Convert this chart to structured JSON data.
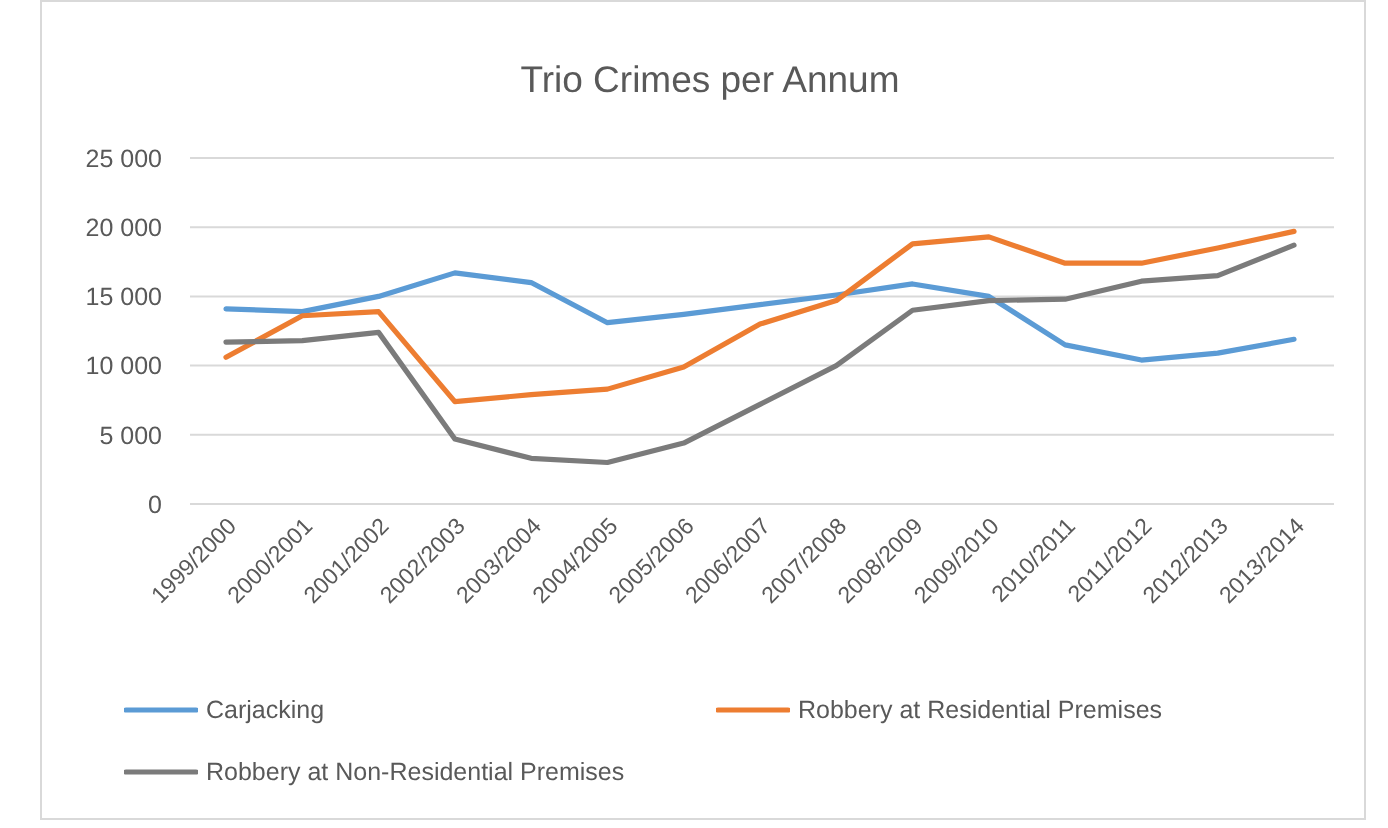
{
  "chart_data": {
    "type": "line",
    "title": "Trio Crimes per Annum",
    "categories": [
      "1999/2000",
      "2000/2001",
      "2001/2002",
      "2002/2003",
      "2003/2004",
      "2004/2005",
      "2005/2006",
      "2006/2007",
      "2007/2008",
      "2008/2009",
      "2009/2010",
      "2010/2011",
      "2011/2012",
      "2012/2013",
      "2013/2014"
    ],
    "series": [
      {
        "name": "Carjacking",
        "color": "#5b9bd5",
        "values": [
          14100,
          13900,
          15000,
          16700,
          16000,
          13100,
          13700,
          14400,
          15100,
          15900,
          15000,
          11500,
          10400,
          10900,
          11900
        ]
      },
      {
        "name": "Robbery at Residential Premises",
        "color": "#ed7d31",
        "values": [
          10600,
          13600,
          13900,
          7400,
          7900,
          8300,
          9900,
          13000,
          14700,
          18800,
          19300,
          17400,
          17400,
          18500,
          19700
        ]
      },
      {
        "name": "Robbery at Non-Residential Premises",
        "color": "#7b7b7b",
        "values": [
          11700,
          11800,
          12400,
          4700,
          3300,
          3000,
          4400,
          7200,
          10000,
          14000,
          14700,
          14800,
          16100,
          16500,
          18700
        ]
      }
    ],
    "ylim": [
      0,
      25000
    ],
    "yticks": [
      0,
      {
        "value": 5000,
        "label": "5 000"
      },
      {
        "value": 10000,
        "label": "10 000"
      },
      {
        "value": 15000,
        "label": "15 000"
      },
      {
        "value": 20000,
        "label": "20 000"
      },
      {
        "value": 25000,
        "label": "25 000"
      }
    ],
    "grid": "y",
    "legend": "bottom",
    "marker": "none",
    "line_style": "solid"
  }
}
